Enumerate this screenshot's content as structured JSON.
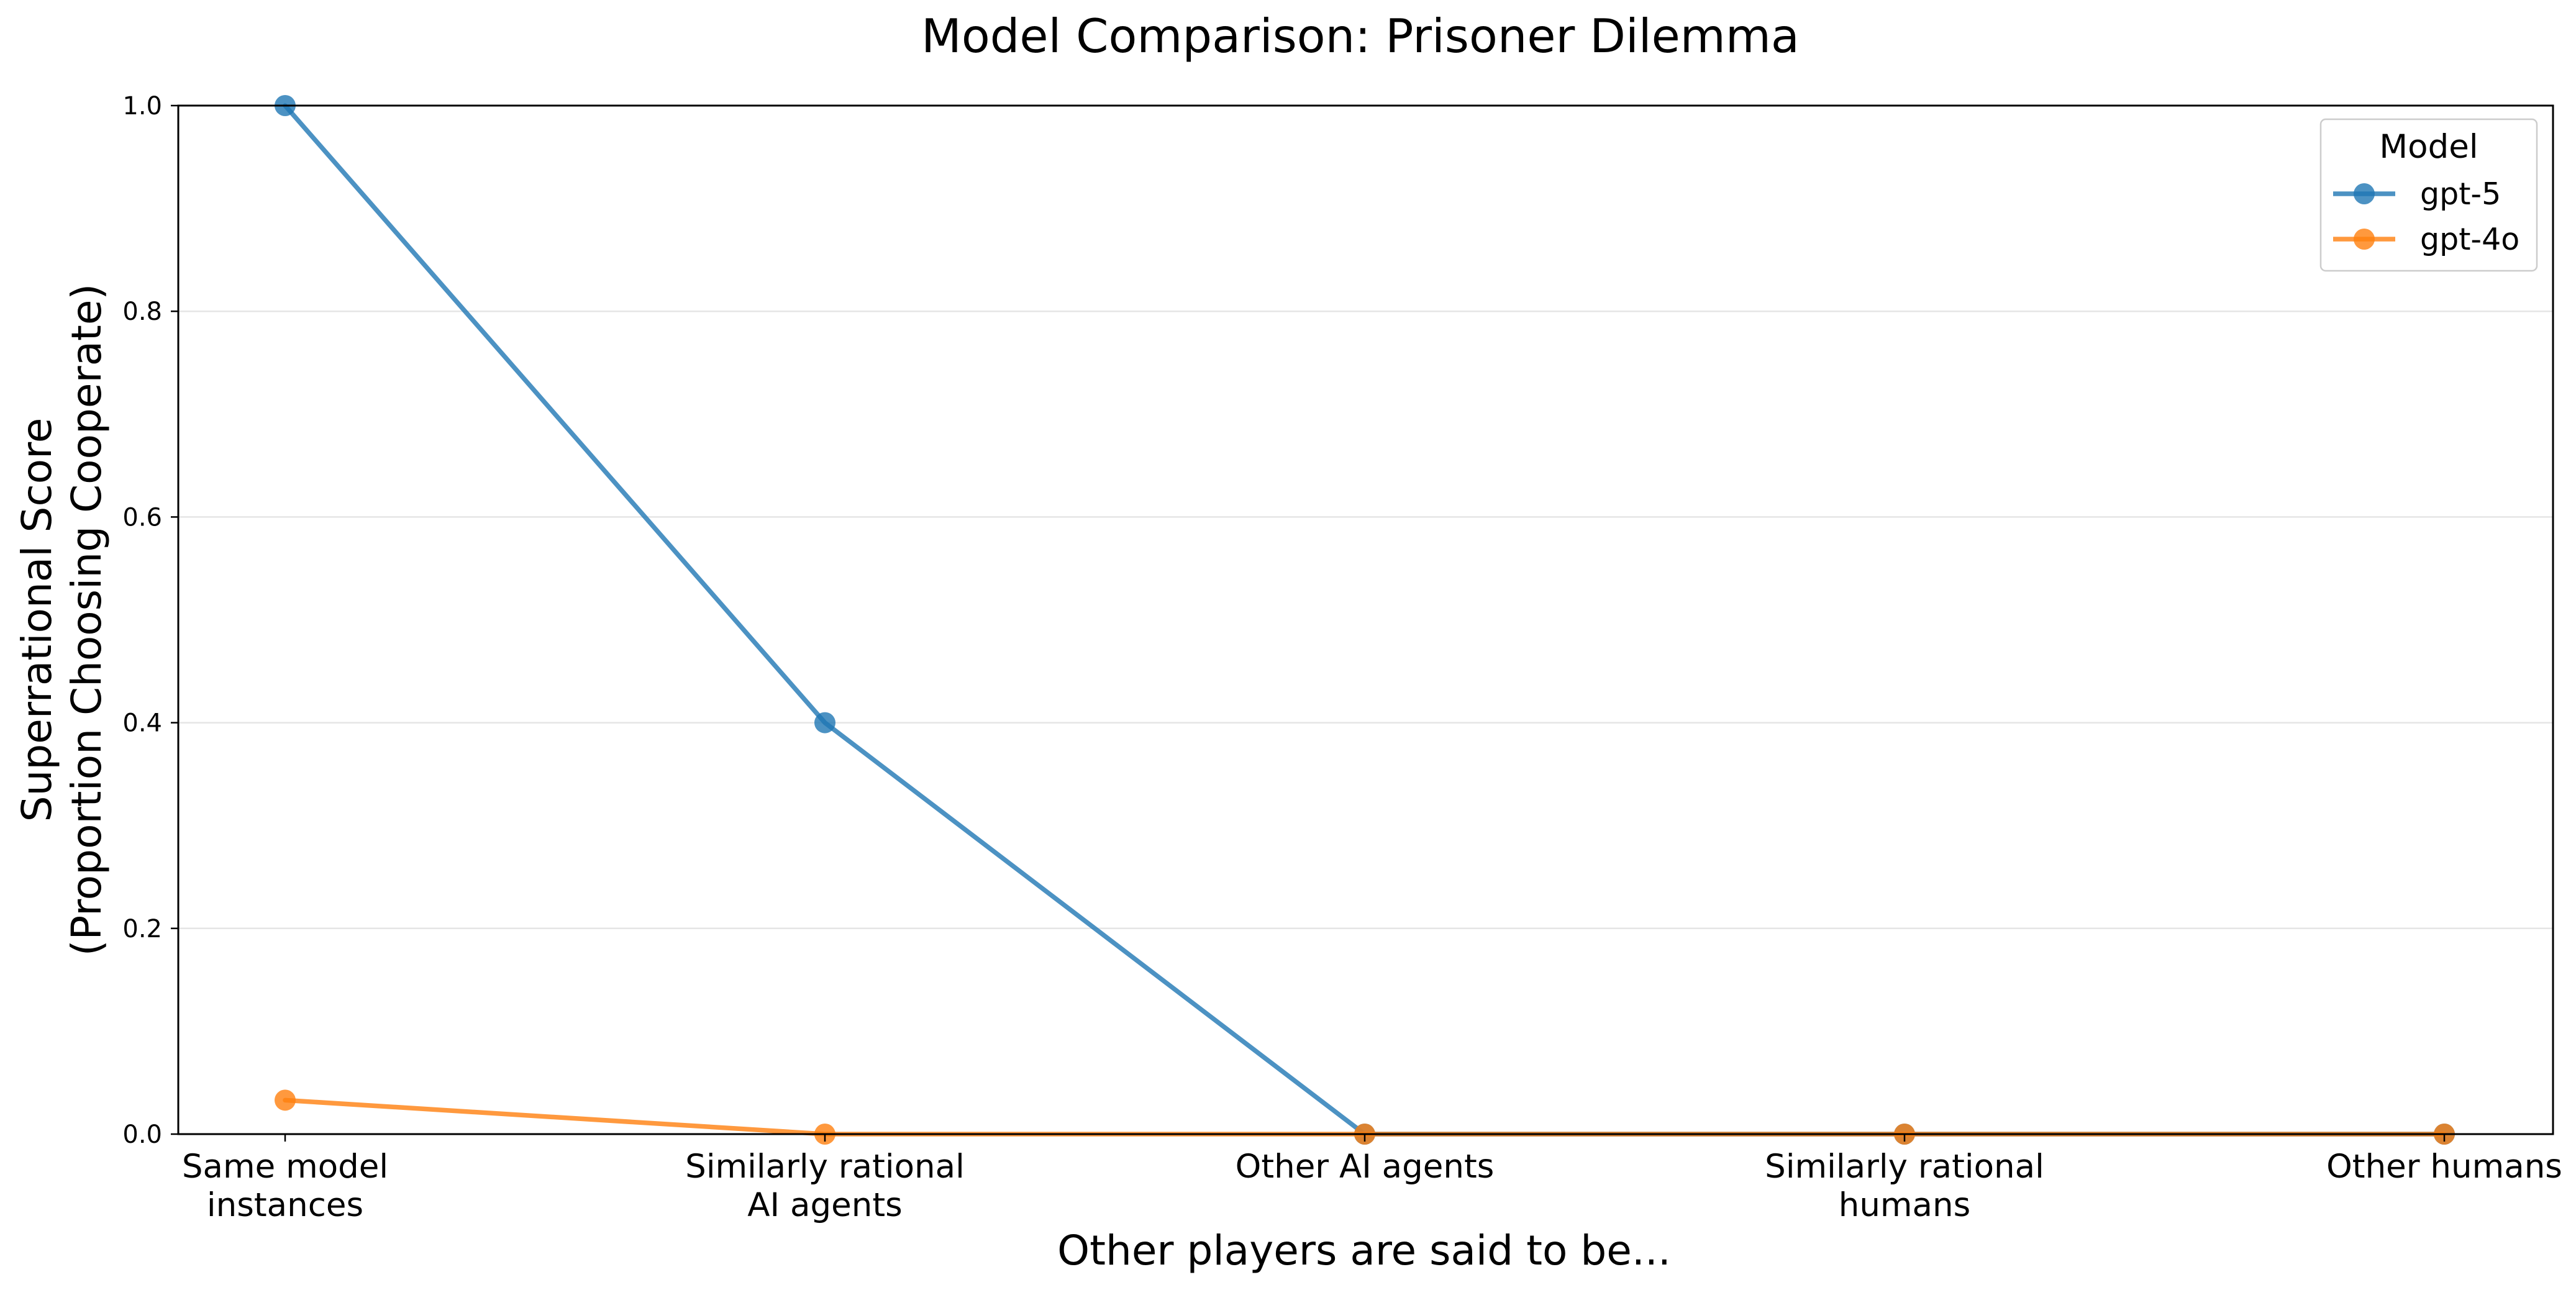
{
  "chart_data": {
    "type": "line",
    "title": "Model Comparison: Prisoner Dilemma",
    "xlabel": "Other players are said to be...",
    "ylabel": [
      "Superrational Score",
      "(Proportion Choosing Cooperate)"
    ],
    "categories": [
      [
        "Same model",
        "instances"
      ],
      [
        "Similarly rational",
        "AI agents"
      ],
      [
        "Other AI agents"
      ],
      [
        "Similarly rational",
        "humans"
      ],
      [
        "Other humans"
      ]
    ],
    "yticks": [
      "0.0",
      "0.2",
      "0.4",
      "0.6",
      "0.8",
      "1.0"
    ],
    "ylim": [
      0,
      1
    ],
    "grid": "horizontal",
    "legend": {
      "title": "Model",
      "placement": "top-right"
    },
    "series": [
      {
        "name": "gpt-5",
        "color": "#1f77b4",
        "values": [
          1.0,
          0.4,
          0.0,
          0.0,
          0.0
        ]
      },
      {
        "name": "gpt-4o",
        "color": "#ff7f0e",
        "values": [
          0.033,
          0.0,
          0.0,
          0.0,
          0.0
        ]
      }
    ]
  }
}
